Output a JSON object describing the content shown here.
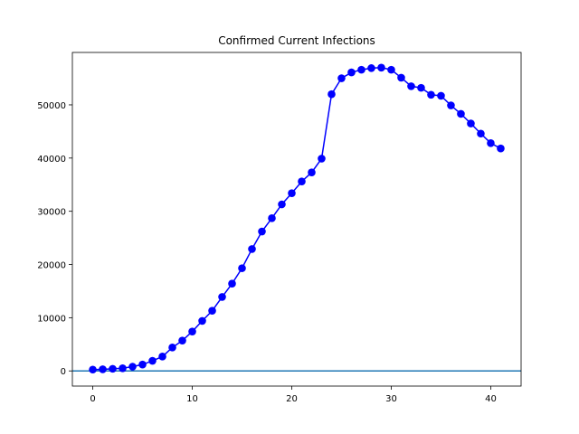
{
  "chart_data": {
    "type": "line",
    "title": "Confirmed Current Infections",
    "xlabel": "",
    "ylabel": "",
    "xlim": [
      -2.05,
      43.05
    ],
    "ylim": [
      -2850,
      59850
    ],
    "xticks": [
      0,
      10,
      20,
      30,
      40
    ],
    "xtick_labels": [
      "0",
      "10",
      "20",
      "30",
      "40"
    ],
    "yticks": [
      0,
      10000,
      20000,
      30000,
      40000,
      50000
    ],
    "ytick_labels": [
      "0",
      "10000",
      "20000",
      "30000",
      "40000",
      "50000"
    ],
    "grid": false,
    "legend": "none",
    "series": [
      {
        "color": "#0000ff",
        "marker": "circle",
        "x": [
          0,
          1,
          2,
          3,
          4,
          5,
          6,
          7,
          8,
          9,
          10,
          11,
          12,
          13,
          14,
          15,
          16,
          17,
          18,
          19,
          20,
          21,
          22,
          23,
          24,
          25,
          26,
          27,
          28,
          29,
          30,
          31,
          32,
          33,
          34,
          35,
          36,
          37,
          38,
          39,
          40,
          41
        ],
        "values": [
          250,
          300,
          400,
          500,
          800,
          1200,
          1900,
          2700,
          4400,
          5700,
          7400,
          9400,
          11300,
          13900,
          16400,
          19300,
          22900,
          26200,
          28700,
          31300,
          33400,
          35600,
          37300,
          39900,
          52000,
          55000,
          56100,
          56600,
          56900,
          57000,
          56600,
          55100,
          53500,
          53200,
          51900,
          51700,
          49900,
          48300,
          46500,
          44600,
          42800,
          41800
        ]
      },
      {
        "color": "#1f77b4",
        "marker": "none",
        "type": "hline",
        "y": 0
      }
    ]
  }
}
